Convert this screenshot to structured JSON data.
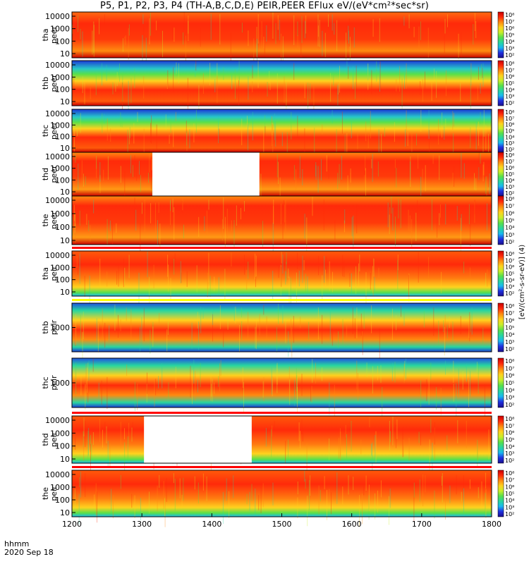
{
  "title": "P5, P1, P2, P3, P4 (TH-A,B,C,D,E) PEIR,PEER EFlux eV/(eV*cm²*sec*sr)",
  "footer": {
    "time_label": "hhmm",
    "date_label": "2020 Sep 18"
  },
  "colors": {
    "colormap": [
      "#1b0f8c",
      "#2030e0",
      "#19b8f0",
      "#27d6a0",
      "#58e04a",
      "#c8ee2a",
      "#ffd21e",
      "#ff8a10",
      "#ff2a0a",
      "#c80000"
    ],
    "fill_red": "#ff0000",
    "fill_yellow": "#ffff00",
    "flag_black": "#000000"
  },
  "chart_data": {
    "type": "heatmap",
    "xlabel": "hhmm",
    "xlim": [
      1200,
      1800
    ],
    "x_ticks": [
      "1200",
      "1300",
      "1400",
      "1500",
      "1600",
      "1700",
      "1800"
    ],
    "colorbar_label": "[eV/(cm²-s-sr-eV)] (4)",
    "panels": [
      {
        "probe": "tha",
        "species": "peer",
        "ylabel": [
          "tha",
          "peer"
        ],
        "y_ticks": [
          "10000",
          "1000",
          "100",
          "10"
        ],
        "colorbar_ticks": [
          "10⁸",
          "10⁷",
          "10⁶",
          "10⁵",
          "10⁴",
          "10³",
          "10²"
        ],
        "gaps": [],
        "fill_bar_above": "none"
      },
      {
        "probe": "thb",
        "species": "peer",
        "ylabel": [
          "thb",
          "peer"
        ],
        "y_ticks": [
          "10000",
          "1000",
          "100",
          "10"
        ],
        "colorbar_ticks": [
          "10⁸",
          "10⁷",
          "10⁶",
          "10⁵",
          "10⁴",
          "10³",
          "10²"
        ],
        "gaps": [],
        "fill_bar_above": "none"
      },
      {
        "probe": "thc",
        "species": "peer",
        "ylabel": [
          "thc",
          "peer"
        ],
        "y_ticks": [
          "10000",
          "1000",
          "100",
          "10"
        ],
        "colorbar_ticks": [
          "10⁸",
          "10⁷",
          "10⁶",
          "10⁵",
          "10⁴",
          "10³",
          "10²"
        ],
        "gaps": [],
        "fill_bar_above": "none"
      },
      {
        "probe": "thd",
        "species": "peer",
        "ylabel": [
          "thd",
          "peer"
        ],
        "y_ticks": [
          "10000",
          "1000",
          "100",
          "10"
        ],
        "colorbar_ticks": [
          "10⁸",
          "10⁷",
          "10⁶",
          "10⁵",
          "10⁴",
          "10³",
          "10²"
        ],
        "gaps": [
          [
            1315,
            1468
          ]
        ],
        "fill_bar_above": "none"
      },
      {
        "probe": "the",
        "species": "peer",
        "ylabel": [
          "the",
          "peer"
        ],
        "y_ticks": [
          "10000",
          "1000",
          "100",
          "10"
        ],
        "colorbar_ticks": [
          "10⁸",
          "10⁷",
          "10⁶",
          "10⁵",
          "10⁴",
          "10³",
          "10²"
        ],
        "gaps": [],
        "fill_bar_above": "none"
      },
      {
        "probe": "tha",
        "species": "peir",
        "ylabel": [
          "tha",
          "peir"
        ],
        "y_ticks": [
          "10000",
          "1000",
          "100",
          "10"
        ],
        "colorbar_ticks": [
          "10⁸",
          "10⁷",
          "10⁶",
          "10⁵",
          "10⁴",
          "10³",
          "10²"
        ],
        "gaps": [],
        "fill_bar_above": "red"
      },
      {
        "probe": "thb",
        "species": "peir",
        "ylabel": [
          "thb",
          "peir"
        ],
        "y_ticks": [
          "1000"
        ],
        "colorbar_ticks": [
          "10⁸",
          "10⁷",
          "10⁶",
          "10⁵",
          "10⁴",
          "10³",
          "10²"
        ],
        "gaps": [],
        "fill_bar_above": "yellow"
      },
      {
        "probe": "thc",
        "species": "peir",
        "ylabel": [
          "thc",
          "peir"
        ],
        "y_ticks": [
          "1000"
        ],
        "colorbar_ticks": [
          "10⁸",
          "10⁷",
          "10⁶",
          "10⁵",
          "10⁴",
          "10³",
          "10²"
        ],
        "gaps": [],
        "fill_bar_above": "none"
      },
      {
        "probe": "thd",
        "species": "peir",
        "ylabel": [
          "thd",
          "peir"
        ],
        "y_ticks": [
          "10000",
          "1000",
          "100",
          "10"
        ],
        "colorbar_ticks": [
          "10⁸",
          "10⁷",
          "10⁶",
          "10⁵",
          "10⁴",
          "10³",
          "10²"
        ],
        "gaps": [
          [
            1303,
            1457
          ]
        ],
        "fill_bar_above": "red"
      },
      {
        "probe": "the",
        "species": "peir",
        "ylabel": [
          "the",
          "peir"
        ],
        "y_ticks": [
          "10000",
          "1000",
          "100",
          "10"
        ],
        "colorbar_ticks": [
          "10⁸",
          "10⁷",
          "10⁶",
          "10⁵",
          "10⁴",
          "10³",
          "10²"
        ],
        "gaps": [],
        "fill_bar_above": "red"
      }
    ]
  }
}
